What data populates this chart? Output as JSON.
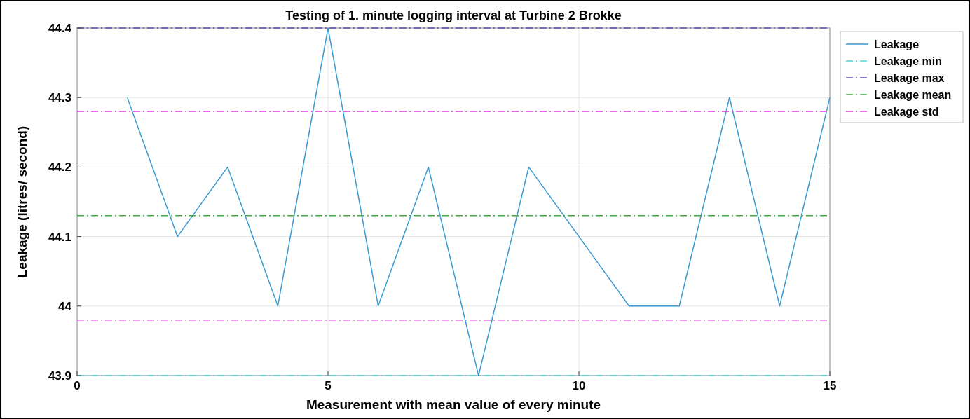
{
  "chart_data": {
    "type": "line",
    "title": "Testing of 1. minute logging interval at Turbine 2 Brokke",
    "xlabel": "Measurement with mean value of every minute",
    "ylabel": "Leakage (litres/ second)",
    "xlim": [
      0,
      15
    ],
    "xticks": [
      0,
      5,
      10,
      15
    ],
    "ylim": [
      43.9,
      44.4
    ],
    "yticks": [
      43.9,
      44.1,
      44.2,
      44.3,
      44.4,
      {
        "value": 44,
        "label": "44"
      }
    ],
    "grid": true,
    "legend": "right",
    "marker": "none",
    "series": [
      {
        "name": "Leakage",
        "color": "#3a9ad2",
        "line_style": "solid",
        "x": [
          1,
          2,
          3,
          4,
          5,
          6,
          7,
          8,
          9,
          10,
          11,
          12,
          13,
          14,
          15
        ],
        "values": [
          44.3,
          44.1,
          44.2,
          44.0,
          44.4,
          44.0,
          44.2,
          43.9,
          44.2,
          44.1,
          44.0,
          44.0,
          44.3,
          44.0,
          44.3
        ]
      },
      {
        "name": "Leakage min",
        "color": "#4fd3d3",
        "line_style": "dashed",
        "x": [
          0,
          15
        ],
        "values": [
          43.9,
          43.9
        ]
      },
      {
        "name": "Leakage max",
        "color": "#5a4fc4",
        "line_style": "dashed",
        "x": [
          0,
          15
        ],
        "values": [
          44.4,
          44.4
        ]
      },
      {
        "name": "Leakage mean",
        "color": "#3faa3f",
        "line_style": "dashed",
        "x": [
          0,
          15
        ],
        "values": [
          44.13,
          44.13
        ]
      },
      {
        "name": "Leakage std",
        "color": "#d23fd2",
        "line_style": "dashed",
        "x": [
          0,
          15
        ],
        "values": [
          44.28,
          44.28
        ]
      }
    ],
    "ref_lines": [
      {
        "axis": "y",
        "value": 43.98,
        "color": "#d23fd2",
        "line_style": "dashed"
      }
    ]
  }
}
